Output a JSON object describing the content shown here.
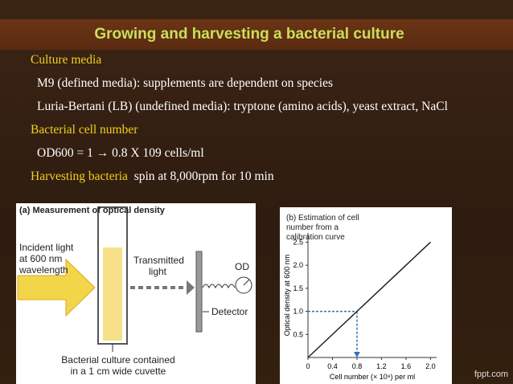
{
  "slide": {
    "title": "Growing and harvesting a bacterial culture",
    "body": [
      {
        "text": "Culture media",
        "style": "heading"
      },
      {
        "text": "M9 (defined media): supplements are dependent on species",
        "style": "item"
      },
      {
        "text": "Luria-Bertani (LB) (undefined media): tryptone (amino acids), yeast extract, NaCl",
        "style": "item"
      },
      {
        "text": "Bacterial cell number",
        "style": "heading"
      },
      {
        "text": "OD600 = 1 → 0.8 X 109 cells/ml",
        "style": "item"
      }
    ],
    "harvest": {
      "heading": "Harvesting bacteria",
      "text": "spin at 8,000rpm for 10 min"
    },
    "watermark": "fppt.com"
  },
  "figure_a": {
    "title": "(a) Measurement of optical density",
    "incident": "Incident light at 600 nm wavelength",
    "transmitted": "Transmitted light",
    "od": "OD",
    "detector": "Detector",
    "cuvette": "Bacterial culture contained in a 1 cm wide cuvette"
  },
  "chart_data": {
    "type": "line",
    "title": "(b) Estimation of cell number from a calibration curve",
    "x_label": "Cell number (× 10⁹) per ml",
    "y_label": "Optical density at 600 nm",
    "x": [
      0,
      2
    ],
    "values": [
      0,
      2.5
    ],
    "color": "#222222",
    "xlim": [
      0,
      2.1
    ],
    "ylim": [
      0,
      2.7
    ],
    "xticks": [
      0,
      0.4,
      0.8,
      1.2,
      1.6,
      {
        "value": 2,
        "label": "2.0"
      }
    ],
    "yticks": [
      0.5,
      {
        "value": 1,
        "label": "1.0"
      },
      1.5,
      {
        "value": 2,
        "label": "2.0"
      },
      2.5
    ],
    "guide": {
      "x": 0.8,
      "y": 1,
      "color": "#3a6fb5"
    }
  }
}
